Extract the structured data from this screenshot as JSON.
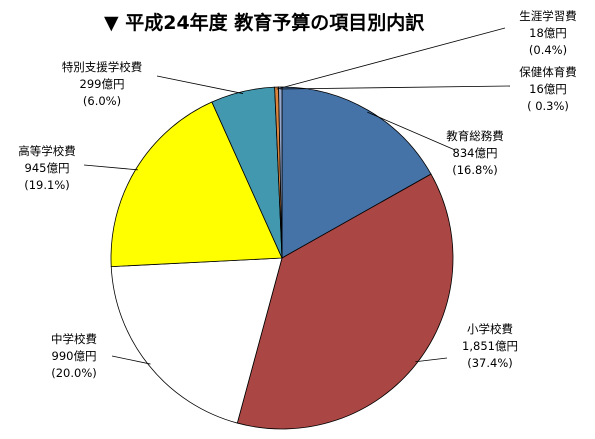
{
  "chart_data": {
    "type": "pie",
    "title": "▼ 平成24年度 教育予算の項目別内訳",
    "unit": "億円",
    "slices": [
      {
        "name": "教育総務費",
        "value": 834,
        "value_label": "834億円",
        "percent_label": "(16.8%)",
        "color": "#4572A7"
      },
      {
        "name": "小学校費",
        "value": 1851,
        "value_label": "1,851億円",
        "percent_label": "(37.4%)",
        "color": "#AA4643"
      },
      {
        "name": "中学校費",
        "value": 990,
        "value_label": "990億円",
        "percent_label": "(20.0%)",
        "color": "#FFFFFF"
      },
      {
        "name": "高等学校費",
        "value": 945,
        "value_label": "945億円",
        "percent_label": "(19.1%)",
        "color": "#FFFF00"
      },
      {
        "name": "特別支援学校費",
        "value": 299,
        "value_label": "299億円",
        "percent_label": "(6.0%)",
        "color": "#4198AF"
      },
      {
        "name": "生涯学習費",
        "value": 18,
        "value_label": "18億円",
        "percent_label": "(0.4%)",
        "color": "#DB843D"
      },
      {
        "name": "保健体育費",
        "value": 16,
        "value_label": "16億円",
        "percent_label": "( 0.3%)",
        "color": "#93A9CF"
      }
    ]
  }
}
